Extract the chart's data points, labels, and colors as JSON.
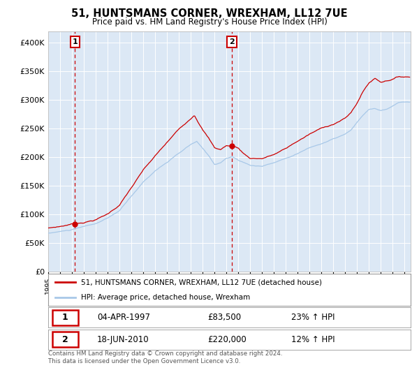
{
  "title": "51, HUNTSMANS CORNER, WREXHAM, LL12 7UE",
  "subtitle": "Price paid vs. HM Land Registry's House Price Index (HPI)",
  "legend_line1": "51, HUNTSMANS CORNER, WREXHAM, LL12 7UE (detached house)",
  "legend_line2": "HPI: Average price, detached house, Wrexham",
  "sale1_label": "1",
  "sale1_date": "04-APR-1997",
  "sale1_price": "£83,500",
  "sale1_hpi": "23% ↑ HPI",
  "sale1_year": 1997.25,
  "sale1_value": 83500,
  "sale2_label": "2",
  "sale2_date": "18-JUN-2010",
  "sale2_price": "£220,000",
  "sale2_hpi": "12% ↑ HPI",
  "sale2_year": 2010.46,
  "sale2_value": 220000,
  "xmin": 1995.0,
  "xmax": 2025.5,
  "ymin": 0,
  "ymax": 420000,
  "hpi_color": "#a8c8e8",
  "price_color": "#cc0000",
  "plot_bg": "#dce8f5",
  "grid_color": "#ffffff",
  "vline_color": "#cc0000",
  "footer": "Contains HM Land Registry data © Crown copyright and database right 2024.\nThis data is licensed under the Open Government Licence v3.0.",
  "yticks": [
    0,
    50000,
    100000,
    150000,
    200000,
    250000,
    300000,
    350000,
    400000
  ],
  "ytick_labels": [
    "£0",
    "£50K",
    "£100K",
    "£150K",
    "£200K",
    "£250K",
    "£300K",
    "£350K",
    "£400K"
  ]
}
